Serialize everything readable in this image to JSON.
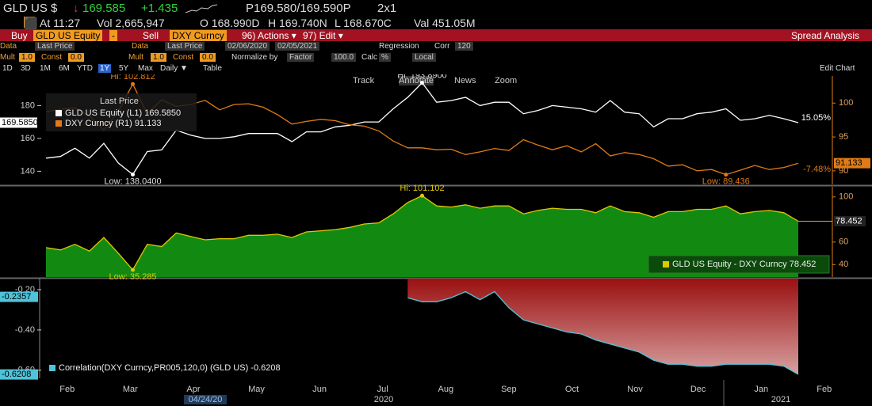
{
  "header": {
    "ticker": "GLD US $",
    "last": "169.585",
    "change": "+1.435",
    "bid_ask": "P169.580/169.590P",
    "size": "2x1",
    "time": "At 11:27",
    "volume": "Vol 2,665,947",
    "open": "O 168.990D",
    "high": "H 169.740N",
    "low": "L 168.670C",
    "value": "Val 451.05M"
  },
  "command_bar": {
    "buy": "Buy",
    "buy_security": "GLD US Equity",
    "sell": "Sell",
    "sell_security": "DXY Curncy",
    "actions": "96) Actions ▾",
    "edit": "97) Edit ▾",
    "title": "Spread Analysis"
  },
  "settings": {
    "left_data_label": "Data",
    "left_data": "Last Price",
    "right_data_label": "Data",
    "right_data": "Last Price",
    "start_date": "02/06/2020",
    "end_date": "02/05/2021",
    "regression": "Regression",
    "corr": "Corr",
    "corr_window": "120",
    "left_mult_label": "Mult",
    "left_mult": "1.0",
    "left_const_label": "Const",
    "left_const": "0.0",
    "right_mult_label": "Mult",
    "right_mult": "1.0",
    "right_const_label": "Const",
    "right_const": "0.0",
    "normalize": "Normalize by",
    "normalize_method": "Factor",
    "normalize_factor": "100.0",
    "calc_label": "Calc",
    "calc": "%",
    "currency": "Local"
  },
  "toolbar": {
    "periods": [
      "1D",
      "3D",
      "1M",
      "6M",
      "YTD",
      "1Y",
      "5Y",
      "Max"
    ],
    "frequency": "Daily ▼",
    "table": "Table",
    "tools": [
      "Track",
      "Annotate",
      "News",
      "Zoom"
    ],
    "edit_chart": "Edit Chart"
  },
  "chart_data": [
    {
      "type": "line",
      "legend_title": "Last Price",
      "series": [
        {
          "name": "GLD US Equity  (L1) 169.5850",
          "color": "#ffffff",
          "values": [
            148,
            149,
            154,
            148,
            157,
            145,
            138.04,
            152,
            153,
            165,
            162,
            160,
            160,
            161,
            163,
            163,
            163,
            158,
            164,
            164,
            167,
            168,
            170,
            170,
            178,
            185,
            193.89,
            182,
            183,
            185,
            180,
            182,
            182,
            175,
            177,
            180,
            179,
            178,
            176,
            183,
            176,
            175,
            167,
            172,
            172,
            175,
            176,
            178,
            171,
            172,
            174,
            172,
            169.585
          ]
        },
        {
          "name": "DXY Curncy  (R1)    91.133",
          "color": "#e07b16",
          "axis": "y2",
          "values": [
            98.7,
            99.1,
            99.3,
            98.1,
            96,
            98.8,
            102.812,
            98.4,
            100.5,
            99.5,
            99.8,
            100.4,
            99,
            99.8,
            99.9,
            99.4,
            98.3,
            96.9,
            97.3,
            97.6,
            97.4,
            96.8,
            96.6,
            95.9,
            94.4,
            93.4,
            93.4,
            93.1,
            93.2,
            92.4,
            92.8,
            93.3,
            93.0,
            94.6,
            93.8,
            93.1,
            93.7,
            92.8,
            94.0,
            92.2,
            92.7,
            92.4,
            91.8,
            90.7,
            90.9,
            90.0,
            90.2,
            89.436,
            90.1,
            90.8,
            90.2,
            90.5,
            91.133
          ]
        }
      ],
      "ylim": [
        132,
        198
      ],
      "yticks": [
        140,
        160,
        180
      ],
      "y2lim": [
        88,
        104
      ],
      "y2ticks": [
        90,
        95,
        100
      ],
      "last_labels": [
        {
          "value": 169.585,
          "label": "169.5850"
        },
        91.133
      ],
      "change_labels": [
        "15.05%",
        "-7.48%"
      ],
      "high_labels": [
        "Hi: 193.8900",
        "Hi: 102.812"
      ],
      "low_labels": [
        "Low: 138.0400",
        "Low: 89.436"
      ]
    },
    {
      "type": "area",
      "series": [
        {
          "name": "GLD US Equity - DXY Curncy 78.452",
          "color": "#e0c800",
          "fill": "#128a12",
          "values": [
            55,
            53,
            58,
            52,
            64,
            50,
            35.285,
            58,
            56,
            68,
            65,
            62,
            63,
            63,
            66,
            66,
            67,
            64,
            69,
            70,
            71,
            73,
            76,
            77,
            85,
            95,
            101.102,
            92,
            91,
            93,
            90,
            92,
            92,
            85,
            88,
            90,
            89,
            89,
            86,
            92,
            87,
            86,
            82,
            87,
            87,
            89,
            89,
            92,
            85,
            87,
            88,
            86,
            78.452
          ]
        }
      ],
      "ylim": [
        29,
        109
      ],
      "yticks": [
        40,
        60,
        100
      ],
      "axis_side": "right",
      "last_labels": [
        78.452
      ],
      "high_labels": [
        "Hi: 101.102"
      ],
      "low_labels": [
        "Low: 35.285"
      ]
    },
    {
      "type": "area",
      "series": [
        {
          "name": "Correlation(DXY Curncy,PR005,120,0) (GLD US) -0.6208",
          "color": "#4fc3d9",
          "fill": "url(#redfill)",
          "fill_to": "top",
          "values": [
            null,
            null,
            null,
            null,
            null,
            null,
            null,
            null,
            null,
            null,
            null,
            null,
            null,
            null,
            null,
            null,
            null,
            null,
            null,
            null,
            null,
            null,
            null,
            null,
            null,
            -0.24,
            -0.26,
            -0.26,
            -0.24,
            -0.21,
            -0.25,
            -0.21,
            -0.29,
            -0.35,
            -0.37,
            -0.39,
            -0.41,
            -0.42,
            -0.45,
            -0.47,
            -0.49,
            -0.51,
            -0.55,
            -0.57,
            -0.57,
            -0.58,
            -0.58,
            -0.57,
            -0.57,
            -0.57,
            -0.57,
            -0.58,
            -0.6208
          ]
        }
      ],
      "ylim": [
        -0.64,
        -0.145
      ],
      "yticks": [
        {
          "value": -0.2,
          "label": "-0.20"
        },
        {
          "value": -0.4,
          "label": "-0.40"
        },
        {
          "value": -0.6,
          "label": "-0.60"
        }
      ],
      "axis_side": "left",
      "last_labels": [
        -0.2357,
        -0.6208
      ]
    }
  ],
  "x_axis": {
    "months": [
      "Feb",
      "Mar",
      "Apr",
      "May",
      "Jun",
      "Jul",
      "Aug",
      "Sep",
      "Oct",
      "Nov",
      "Dec",
      "Jan",
      "Feb"
    ],
    "years": [
      "2020",
      "2021"
    ],
    "date_marker": "04/24/20"
  }
}
